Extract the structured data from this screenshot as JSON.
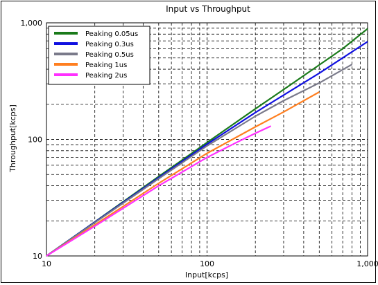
{
  "chart_data": {
    "type": "line",
    "title": "Input vs Throughput",
    "xlabel": "Input[kcps]",
    "ylabel": "Throughput[kcps]",
    "xscale": "log",
    "yscale": "log",
    "xlim": [
      10,
      1000
    ],
    "ylim": [
      10,
      1000
    ],
    "x_ticks": [
      "10",
      "100",
      "1,000"
    ],
    "y_ticks": [
      "10",
      "100",
      "1,000"
    ],
    "grid": true,
    "grid_style": "dashed",
    "legend_position": "top-left",
    "series": [
      {
        "name": "Peaking 0.05us",
        "color": "#1a7a1a",
        "x": [
          10,
          20,
          50,
          100,
          200,
          300,
          500,
          700,
          1000
        ],
        "y": [
          10,
          19.6,
          48,
          94,
          183,
          268,
          435,
          600,
          890
        ]
      },
      {
        "name": "Peaking 0.3us",
        "color": "#1010e0",
        "x": [
          10,
          20,
          50,
          100,
          200,
          300,
          500,
          700,
          1000
        ],
        "y": [
          10,
          19.5,
          47,
          91,
          170,
          240,
          370,
          500,
          690
        ]
      },
      {
        "name": "Peaking 0.5us",
        "color": "#7a7a8a",
        "x": [
          10,
          20,
          50,
          100,
          200,
          300,
          500,
          800
        ],
        "y": [
          10,
          19.3,
          46,
          88,
          158,
          215,
          305,
          440
        ]
      },
      {
        "name": "Peaking 1us",
        "color": "#ff7f20",
        "x": [
          10,
          20,
          50,
          100,
          200,
          300,
          500
        ],
        "y": [
          10,
          18.5,
          42,
          76,
          128,
          172,
          255
        ]
      },
      {
        "name": "Peaking 2us",
        "color": "#ff30ff",
        "x": [
          10,
          20,
          50,
          100,
          150,
          200,
          250
        ],
        "y": [
          10,
          18,
          40,
          70,
          93,
          113,
          130
        ]
      }
    ]
  }
}
